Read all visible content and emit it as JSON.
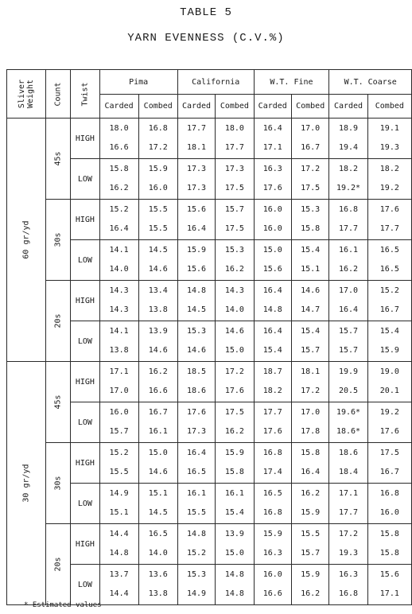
{
  "title": "TABLE 5",
  "subtitle": "YARN EVENNESS (C.V.%)",
  "headers": {
    "sliver_line1": "Sliver",
    "sliver_line2": "Weight",
    "count": "Count",
    "twist": "Twist",
    "groups": [
      "Pima",
      "California",
      "W.T. Fine",
      "W.T. Coarse"
    ],
    "carded": "Carded",
    "combed": "Combed"
  },
  "rows": [
    {
      "sliver": "60 gr/yd",
      "count": "45s",
      "twist": "HIGH",
      "values": [
        [
          "18.0",
          "16.6"
        ],
        [
          "16.8",
          "17.2"
        ],
        [
          "17.7",
          "18.1"
        ],
        [
          "18.0",
          "17.7"
        ],
        [
          "16.4",
          "17.1"
        ],
        [
          "17.0",
          "16.7"
        ],
        [
          "18.9",
          "19.4"
        ],
        [
          "19.1",
          "19.3"
        ]
      ]
    },
    {
      "sliver": "60 gr/yd",
      "count": "45s",
      "twist": "LOW",
      "values": [
        [
          "15.8",
          "16.2"
        ],
        [
          "15.9",
          "16.0"
        ],
        [
          "17.3",
          "17.3"
        ],
        [
          "17.3",
          "17.5"
        ],
        [
          "16.3",
          "17.6"
        ],
        [
          "17.2",
          "17.5"
        ],
        [
          "18.2",
          "19.2*"
        ],
        [
          "18.2",
          "19.2"
        ]
      ]
    },
    {
      "sliver": "60 gr/yd",
      "count": "30s",
      "twist": "HIGH",
      "values": [
        [
          "15.2",
          "16.4"
        ],
        [
          "15.5",
          "15.5"
        ],
        [
          "15.6",
          "16.4"
        ],
        [
          "15.7",
          "17.5"
        ],
        [
          "16.0",
          "16.0"
        ],
        [
          "15.3",
          "15.8"
        ],
        [
          "16.8",
          "17.7"
        ],
        [
          "17.6",
          "17.7"
        ]
      ]
    },
    {
      "sliver": "60 gr/yd",
      "count": "30s",
      "twist": "LOW",
      "values": [
        [
          "14.1",
          "14.0"
        ],
        [
          "14.5",
          "14.6"
        ],
        [
          "15.9",
          "15.6"
        ],
        [
          "15.3",
          "16.2"
        ],
        [
          "15.0",
          "15.6"
        ],
        [
          "15.4",
          "15.1"
        ],
        [
          "16.1",
          "16.2"
        ],
        [
          "16.5",
          "16.5"
        ]
      ]
    },
    {
      "sliver": "60 gr/yd",
      "count": "20s",
      "twist": "HIGH",
      "values": [
        [
          "14.3",
          "14.3"
        ],
        [
          "13.4",
          "13.8"
        ],
        [
          "14.8",
          "14.5"
        ],
        [
          "14.3",
          "14.0"
        ],
        [
          "16.4",
          "14.8"
        ],
        [
          "14.6",
          "14.7"
        ],
        [
          "17.0",
          "16.4"
        ],
        [
          "15.2",
          "16.7"
        ]
      ]
    },
    {
      "sliver": "60 gr/yd",
      "count": "20s",
      "twist": "LOW",
      "values": [
        [
          "14.1",
          "13.8"
        ],
        [
          "13.9",
          "14.6"
        ],
        [
          "15.3",
          "14.6"
        ],
        [
          "14.6",
          "15.0"
        ],
        [
          "16.4",
          "15.4"
        ],
        [
          "15.4",
          "15.7"
        ],
        [
          "15.7",
          "15.7"
        ],
        [
          "15.4",
          "15.9"
        ]
      ]
    },
    {
      "sliver": "30 gr/yd",
      "count": "45s",
      "twist": "HIGH",
      "values": [
        [
          "17.1",
          "17.0"
        ],
        [
          "16.2",
          "16.6"
        ],
        [
          "18.5",
          "18.6"
        ],
        [
          "17.2",
          "17.6"
        ],
        [
          "18.7",
          "18.2"
        ],
        [
          "18.1",
          "17.2"
        ],
        [
          "19.9",
          "20.5"
        ],
        [
          "19.0",
          "20.1"
        ]
      ]
    },
    {
      "sliver": "30 gr/yd",
      "count": "45s",
      "twist": "LOW",
      "values": [
        [
          "16.0",
          "15.7"
        ],
        [
          "16.7",
          "16.1"
        ],
        [
          "17.6",
          "17.3"
        ],
        [
          "17.5",
          "16.2"
        ],
        [
          "17.7",
          "17.6"
        ],
        [
          "17.0",
          "17.8"
        ],
        [
          "19.6*",
          "18.6*"
        ],
        [
          "19.2",
          "17.6"
        ]
      ]
    },
    {
      "sliver": "30 gr/yd",
      "count": "30s",
      "twist": "HIGH",
      "values": [
        [
          "15.2",
          "15.5"
        ],
        [
          "15.0",
          "14.6"
        ],
        [
          "16.4",
          "16.5"
        ],
        [
          "15.9",
          "15.8"
        ],
        [
          "16.8",
          "17.4"
        ],
        [
          "15.8",
          "16.4"
        ],
        [
          "18.6",
          "18.4"
        ],
        [
          "17.5",
          "16.7"
        ]
      ]
    },
    {
      "sliver": "30 gr/yd",
      "count": "30s",
      "twist": "LOW",
      "values": [
        [
          "14.9",
          "15.1"
        ],
        [
          "15.1",
          "14.5"
        ],
        [
          "16.1",
          "15.5"
        ],
        [
          "16.1",
          "15.4"
        ],
        [
          "16.5",
          "16.8"
        ],
        [
          "16.2",
          "15.9"
        ],
        [
          "17.1",
          "17.7"
        ],
        [
          "16.8",
          "16.0"
        ]
      ]
    },
    {
      "sliver": "30 gr/yd",
      "count": "20s",
      "twist": "HIGH",
      "values": [
        [
          "14.4",
          "14.8"
        ],
        [
          "16.5",
          "14.0"
        ],
        [
          "14.8",
          "15.2"
        ],
        [
          "13.9",
          "15.0"
        ],
        [
          "15.9",
          "16.3"
        ],
        [
          "15.5",
          "15.7"
        ],
        [
          "17.2",
          "19.3"
        ],
        [
          "15.8",
          "15.8"
        ]
      ]
    },
    {
      "sliver": "30 gr/yd",
      "count": "20s",
      "twist": "LOW",
      "values": [
        [
          "13.7",
          "14.4"
        ],
        [
          "13.6",
          "13.8"
        ],
        [
          "15.3",
          "14.9"
        ],
        [
          "14.8",
          "14.8"
        ],
        [
          "16.0",
          "16.6"
        ],
        [
          "15.9",
          "16.2"
        ],
        [
          "16.3",
          "16.8"
        ],
        [
          "15.6",
          "17.1"
        ]
      ]
    }
  ],
  "footnote": "* Estimated values"
}
